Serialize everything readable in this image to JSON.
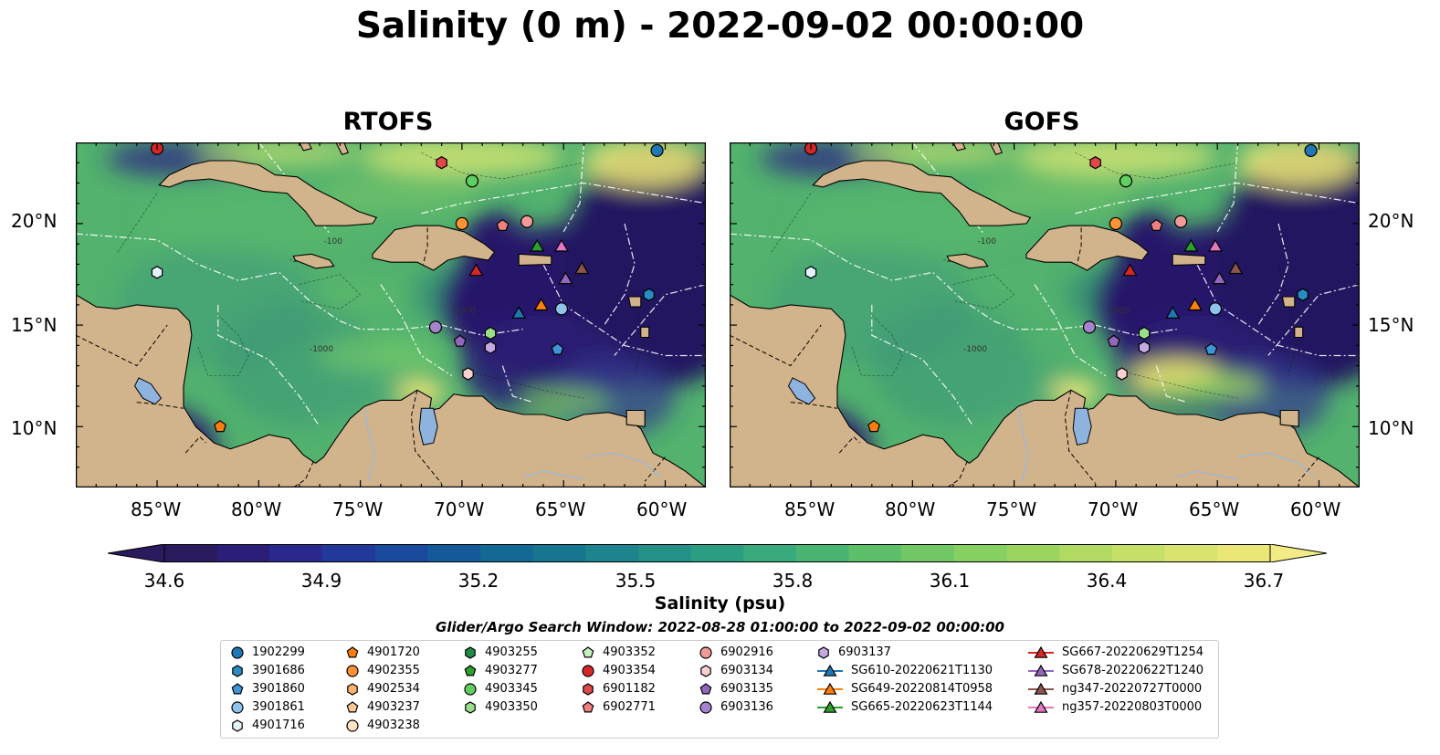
{
  "title": "Salinity (0 m) - 2022-09-02 00:00:00",
  "panels": [
    {
      "title": "RTOFS"
    },
    {
      "title": "GOFS"
    }
  ],
  "lon_ticks": [
    "85°W",
    "80°W",
    "75°W",
    "70°W",
    "65°W",
    "60°W"
  ],
  "lat_ticks": [
    "20°N",
    "15°N",
    "10°N"
  ],
  "contour_labels": [
    "-100",
    "-100",
    "-1000",
    "-1000"
  ],
  "colorbar": {
    "ticks": [
      "34.6",
      "34.9",
      "35.2",
      "35.5",
      "35.8",
      "36.1",
      "36.4",
      "36.7"
    ],
    "label": "Salinity (psu)",
    "range": [
      34.6,
      36.7
    ],
    "extend": "both",
    "colormap": "haline"
  },
  "search_window": "Glider/Argo Search Window: 2022-08-28 01:00:00 to 2022-09-02 00:00:00",
  "legend": {
    "columns": [
      [
        {
          "label": "1902299",
          "marker": "circle",
          "color": "#1f77b4"
        },
        {
          "label": "3901686",
          "marker": "hexagon",
          "color": "#2b8cc4"
        },
        {
          "label": "3901860",
          "marker": "pentagon",
          "color": "#3f94d8"
        },
        {
          "label": "3901861",
          "marker": "circle",
          "color": "#8fc3ec"
        },
        {
          "label": "4901716",
          "marker": "hexagon",
          "color": "#e3f1fb"
        }
      ],
      [
        {
          "label": "4901720",
          "marker": "pentagon",
          "color": "#ff7f0e"
        },
        {
          "label": "4902355",
          "marker": "circle",
          "color": "#ff9233"
        },
        {
          "label": "4902534",
          "marker": "hexagon",
          "color": "#ffb26b"
        },
        {
          "label": "4903237",
          "marker": "pentagon",
          "color": "#ffc89a"
        },
        {
          "label": "4903238",
          "marker": "circle",
          "color": "#ffe3c4"
        }
      ],
      [
        {
          "label": "4903255",
          "marker": "hexagon",
          "color": "#238b45"
        },
        {
          "label": "4903277",
          "marker": "pentagon",
          "color": "#2ca02c"
        },
        {
          "label": "4903345",
          "marker": "circle",
          "color": "#5fcf5f"
        },
        {
          "label": "4903350",
          "marker": "hexagon",
          "color": "#98df8a"
        }
      ],
      [
        {
          "label": "4903352",
          "marker": "pentagon",
          "color": "#c7f1c0"
        },
        {
          "label": "4903354",
          "marker": "circle",
          "color": "#d62728"
        },
        {
          "label": "6901182",
          "marker": "hexagon",
          "color": "#e0484a"
        },
        {
          "label": "6902771",
          "marker": "pentagon",
          "color": "#f08080"
        }
      ],
      [
        {
          "label": "6902916",
          "marker": "circle",
          "color": "#f29a9a"
        },
        {
          "label": "6903134",
          "marker": "hexagon",
          "color": "#fbd0d0"
        },
        {
          "label": "6903135",
          "marker": "pentagon",
          "color": "#9467bd"
        },
        {
          "label": "6903136",
          "marker": "circle",
          "color": "#a783cf"
        }
      ],
      [
        {
          "label": "6903137",
          "marker": "hexagon",
          "color": "#c5a9e3"
        },
        {
          "label": "SG610-20220621T1130",
          "marker": "triangle",
          "color": "#1f77b4"
        },
        {
          "label": "SG649-20220814T0958",
          "marker": "triangle",
          "color": "#ff7f0e"
        },
        {
          "label": "SG665-20220623T1144",
          "marker": "triangle",
          "color": "#2ca02c"
        }
      ],
      [
        {
          "label": "SG667-20220629T1254",
          "marker": "triangle",
          "color": "#d62728"
        },
        {
          "label": "SG678-20220622T1240",
          "marker": "triangle",
          "color": "#9467bd"
        },
        {
          "label": "ng347-20220727T0000",
          "marker": "triangle",
          "color": "#8c564b"
        },
        {
          "label": "ng357-20220803T0000",
          "marker": "triangle",
          "color": "#e377c2"
        }
      ]
    ]
  },
  "map_extent": {
    "lon": [
      -89,
      -58
    ],
    "lat": [
      7,
      24
    ]
  },
  "colors": {
    "land": "#d2b48c",
    "lake": "#8fb3df",
    "river": "#9bb8d8",
    "low_salinity": "#2b1a6e",
    "high_salinity": "#f1e578"
  },
  "markers": [
    {
      "id": "1902299",
      "lon": -60.4,
      "lat": 23.6,
      "marker": "circle",
      "color": "#1f77b4"
    },
    {
      "id": "4903354",
      "lon": -85.0,
      "lat": 23.7,
      "marker": "circle",
      "color": "#d62728"
    },
    {
      "id": "6901182",
      "lon": -71.0,
      "lat": 23.0,
      "marker": "hexagon",
      "color": "#e0484a"
    },
    {
      "id": "4903345",
      "lon": -69.5,
      "lat": 22.1,
      "marker": "circle",
      "color": "#5fcf5f"
    },
    {
      "id": "4902355",
      "lon": -70.0,
      "lat": 20.0,
      "marker": "circle",
      "color": "#ff9233"
    },
    {
      "id": "6902771",
      "lon": -68.0,
      "lat": 19.9,
      "marker": "pentagon",
      "color": "#f08080"
    },
    {
      "id": "6902916",
      "lon": -66.8,
      "lat": 20.1,
      "marker": "circle",
      "color": "#f29a9a"
    },
    {
      "id": "SG665-20220623T1144",
      "lon": -66.3,
      "lat": 18.9,
      "marker": "triangle",
      "color": "#2ca02c"
    },
    {
      "id": "ng357-20220803T0000",
      "lon": -65.1,
      "lat": 18.9,
      "marker": "triangle",
      "color": "#e377c2"
    },
    {
      "id": "SG667-20220629T1254",
      "lon": -69.3,
      "lat": 17.7,
      "marker": "triangle",
      "color": "#d62728"
    },
    {
      "id": "ng347-20220727T0000",
      "lon": -64.1,
      "lat": 17.8,
      "marker": "triangle",
      "color": "#8c564b"
    },
    {
      "id": "SG678-20220622T1240",
      "lon": -64.9,
      "lat": 17.3,
      "marker": "triangle",
      "color": "#9467bd"
    },
    {
      "id": "4901716",
      "lon": -85.0,
      "lat": 17.6,
      "marker": "hexagon",
      "color": "#e3f1fb"
    },
    {
      "id": "3901686",
      "lon": -60.8,
      "lat": 16.5,
      "marker": "hexagon",
      "color": "#2b8cc4"
    },
    {
      "id": "SG649-20220814T0958",
      "lon": -66.1,
      "lat": 16.0,
      "marker": "triangle",
      "color": "#ff7f0e"
    },
    {
      "id": "3901861",
      "lon": -65.1,
      "lat": 15.8,
      "marker": "circle",
      "color": "#8fc3ec"
    },
    {
      "id": "SG610-20220621T1130",
      "lon": -67.2,
      "lat": 15.6,
      "marker": "triangle",
      "color": "#1f77b4"
    },
    {
      "id": "6903136",
      "lon": -71.3,
      "lat": 14.9,
      "marker": "circle",
      "color": "#a783cf"
    },
    {
      "id": "4903350",
      "lon": -68.6,
      "lat": 14.6,
      "marker": "hexagon",
      "color": "#98df8a"
    },
    {
      "id": "6903135",
      "lon": -70.1,
      "lat": 14.2,
      "marker": "pentagon",
      "color": "#9467bd"
    },
    {
      "id": "6903137",
      "lon": -68.6,
      "lat": 13.9,
      "marker": "hexagon",
      "color": "#c5a9e3"
    },
    {
      "id": "3901860",
      "lon": -65.3,
      "lat": 13.8,
      "marker": "pentagon",
      "color": "#3f94d8"
    },
    {
      "id": "6903134",
      "lon": -69.7,
      "lat": 12.6,
      "marker": "hexagon",
      "color": "#fbd0d0"
    },
    {
      "id": "4901720",
      "lon": -81.9,
      "lat": 10.0,
      "marker": "pentagon",
      "color": "#ff7f0e"
    }
  ]
}
